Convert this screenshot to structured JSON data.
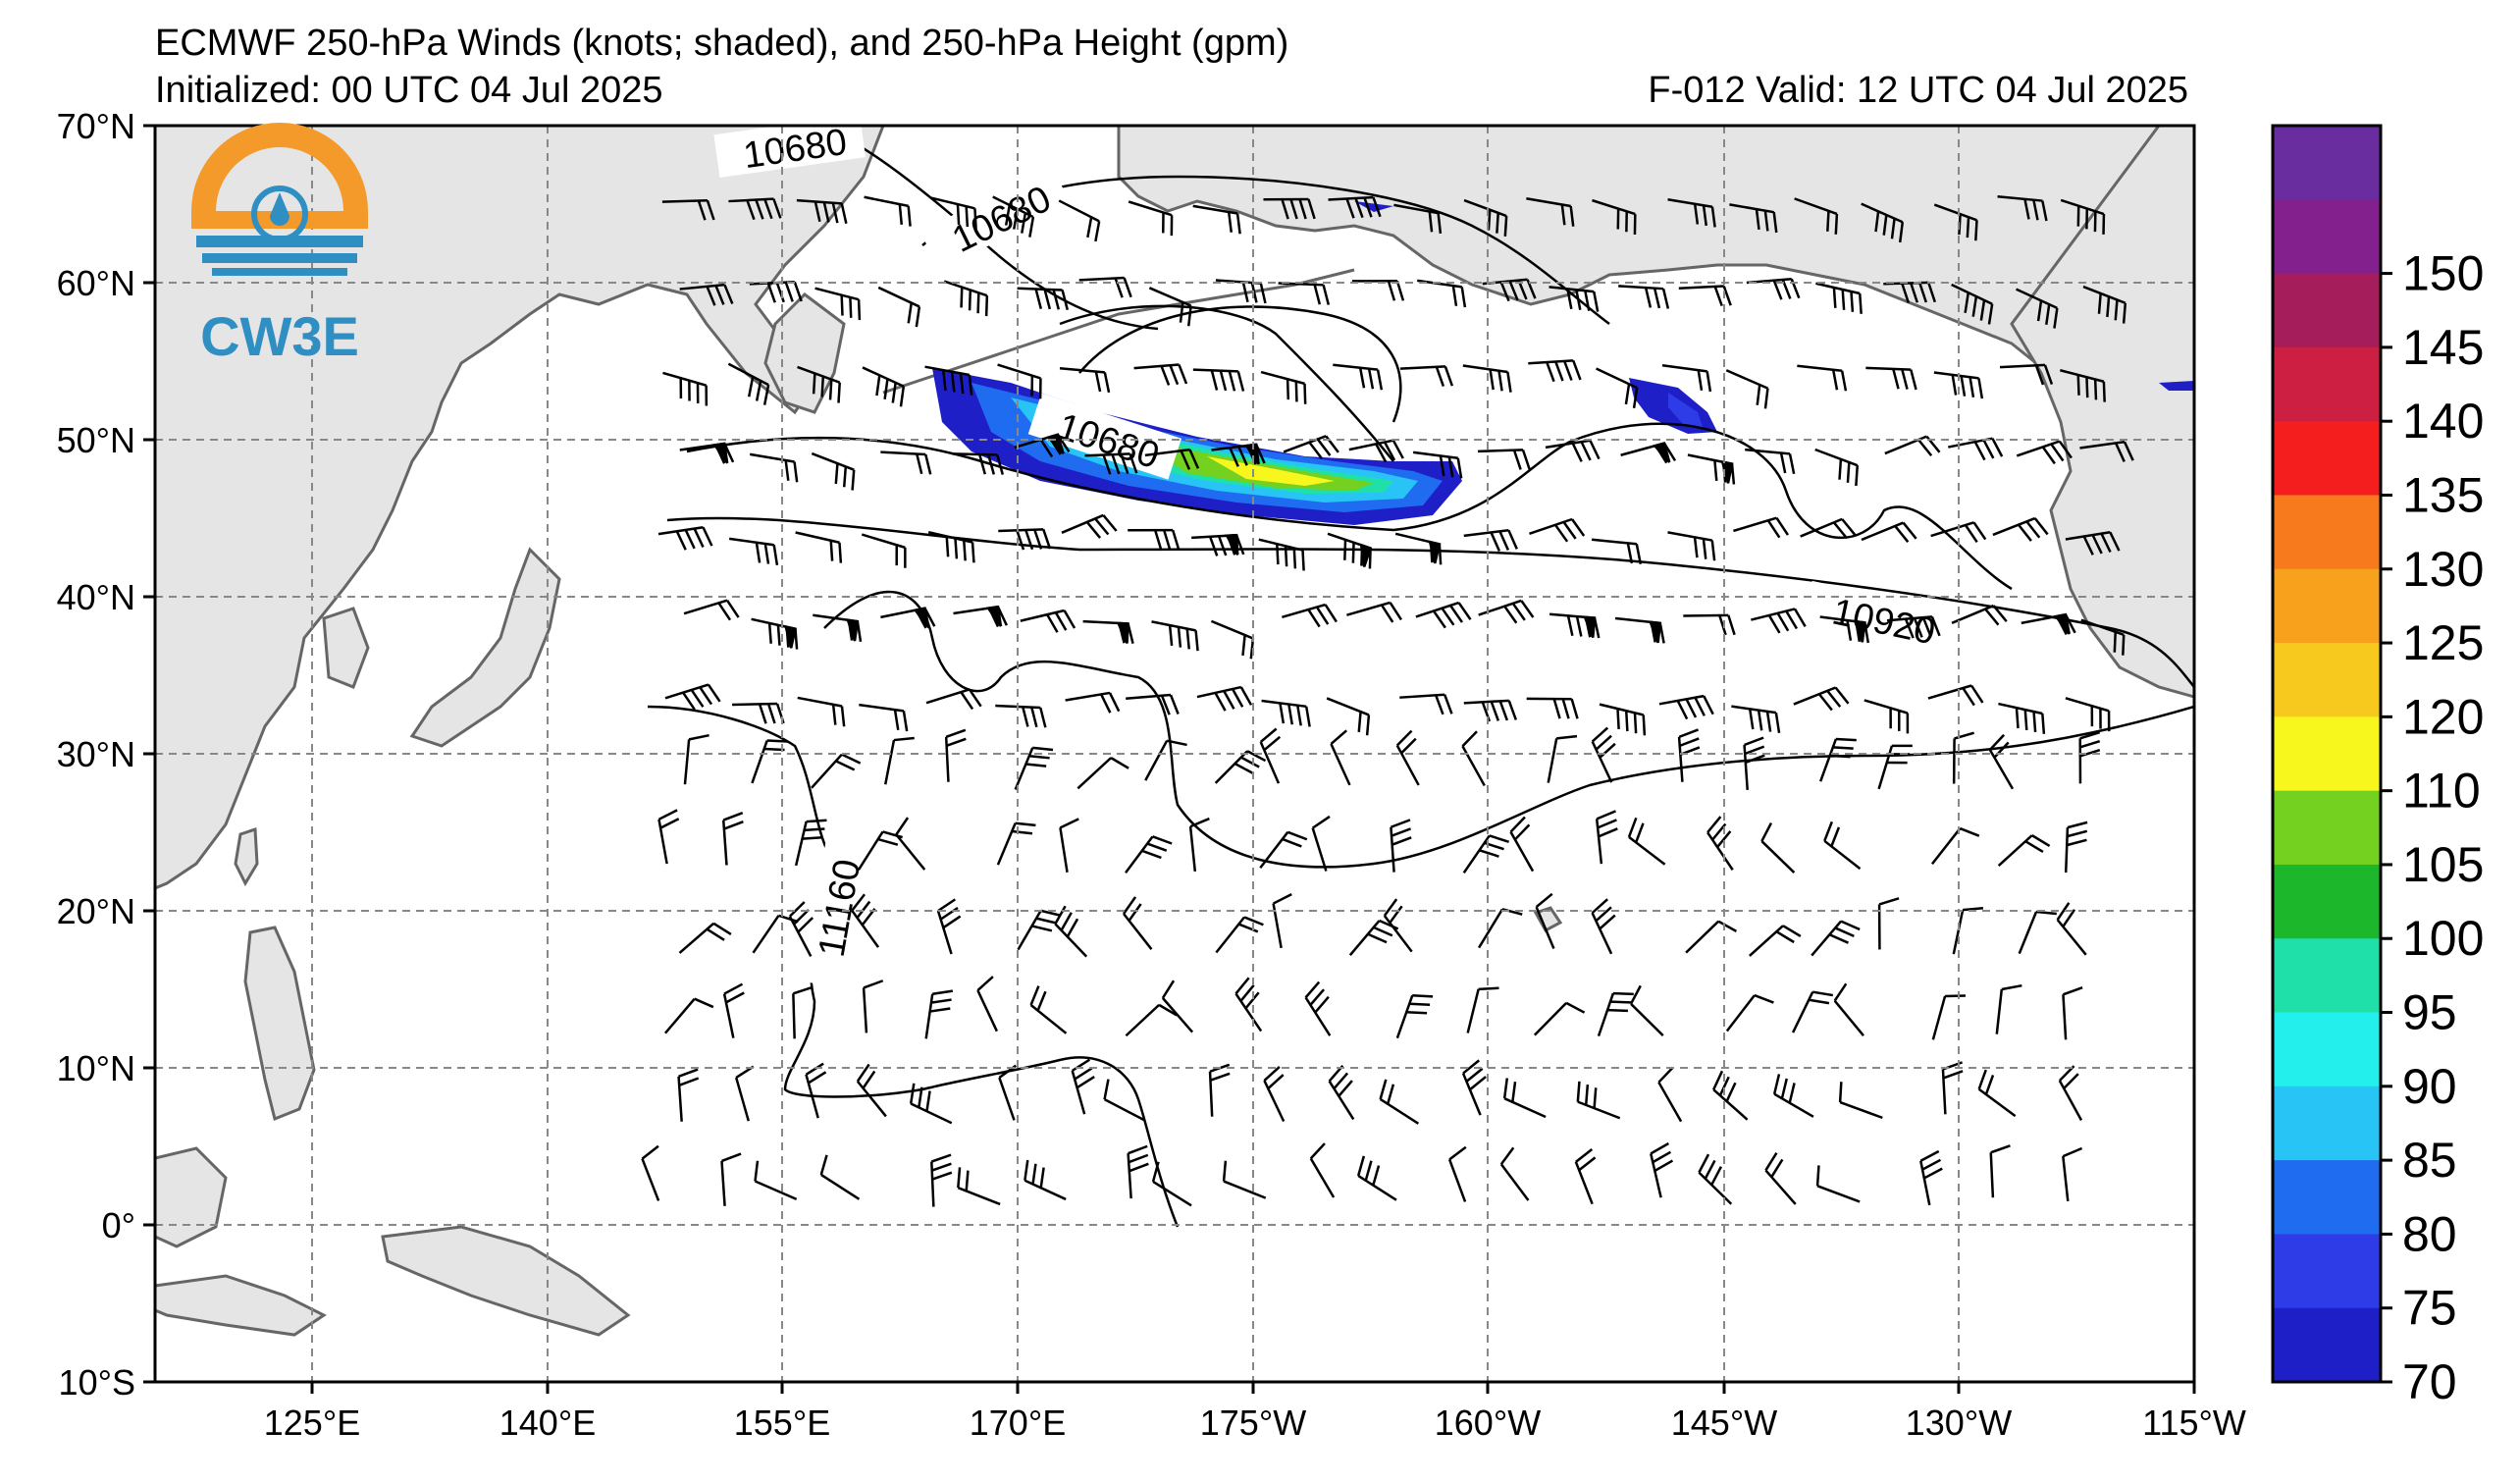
{
  "header": {
    "title": "ECMWF 250-hPa Winds (knots; shaded), and 250-hPa Height (gpm)",
    "initialized": "Initialized: 00 UTC 04 Jul 2025",
    "valid": "F-012  Valid: 12 UTC 04 Jul 2025"
  },
  "logo": {
    "text": "CW3E",
    "colors": {
      "orange": "#f39a2a",
      "blue": "#2f8fc2"
    }
  },
  "axes": {
    "lat_labels": [
      "70°N",
      "60°N",
      "50°N",
      "40°N",
      "30°N",
      "20°N",
      "10°N",
      "0°",
      "10°S"
    ],
    "lon_labels": [
      "125°E",
      "140°E",
      "155°E",
      "170°E",
      "175°W",
      "160°W",
      "145°W",
      "130°W",
      "115°W"
    ]
  },
  "contour_labels": [
    {
      "text": "10680"
    },
    {
      "text": "10680"
    },
    {
      "text": "10680"
    },
    {
      "text": "10920"
    },
    {
      "text": "11160"
    }
  ],
  "colorbar": {
    "labels": [
      "70",
      "75",
      "80",
      "85",
      "90",
      "95",
      "100",
      "105",
      "110",
      "120",
      "125",
      "130",
      "135",
      "140",
      "145",
      "150"
    ],
    "colors": [
      "#1f1fc8",
      "#2e3ce8",
      "#1f6cf0",
      "#28c4f6",
      "#23f0ec",
      "#1fe0a8",
      "#1db72c",
      "#74d11f",
      "#f7f71d",
      "#f7c81d",
      "#f7a11d",
      "#f77a1d",
      "#f41e1e",
      "#cd1f42",
      "#a61d5c",
      "#84208e",
      "#6a2da0"
    ]
  },
  "colors": {
    "land": "#e5e5e5",
    "coast": "#666666",
    "grid": "#888888"
  }
}
